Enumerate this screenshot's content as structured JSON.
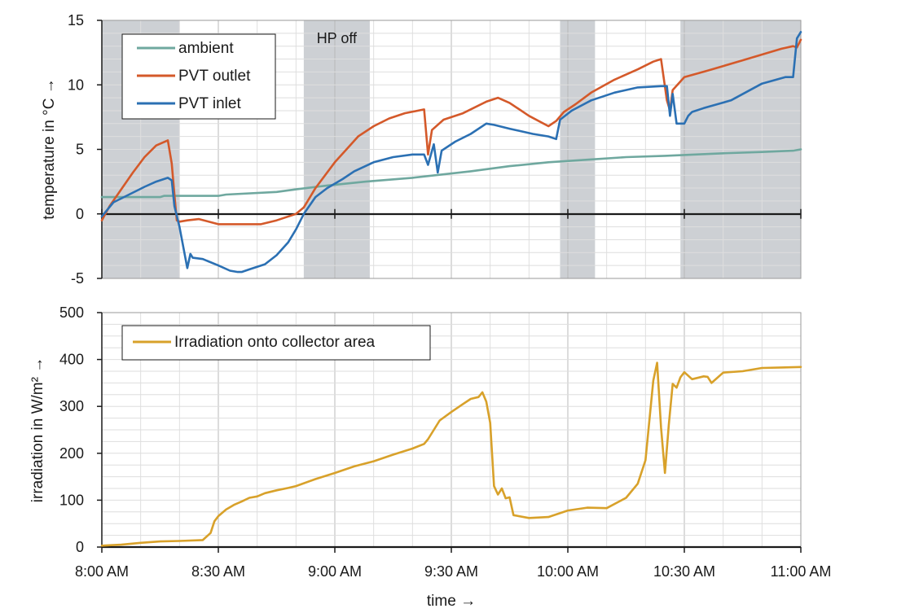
{
  "chart_data": [
    {
      "type": "line",
      "panel": "top",
      "xlabel": "",
      "ylabel": "temperature in °C →",
      "xlim": [
        0,
        180
      ],
      "ylim": [
        -5,
        15
      ],
      "yticks": [
        -5,
        0,
        5,
        10,
        15
      ],
      "grid": true,
      "legend_position": "top-left",
      "shaded_intervals": [
        [
          0,
          20
        ],
        [
          52,
          69
        ],
        [
          118,
          127
        ],
        [
          149,
          180
        ]
      ],
      "annotations": [
        {
          "text": "HP off",
          "x": 60.5,
          "y": 13.6
        }
      ],
      "series": [
        {
          "name": "ambient",
          "color": "#6fa89f",
          "x": [
            0,
            15,
            16,
            30,
            32,
            45,
            50,
            58,
            68,
            80,
            95,
            105,
            115,
            125,
            135,
            145,
            160,
            170,
            178,
            180
          ],
          "y": [
            1.3,
            1.3,
            1.4,
            1.4,
            1.5,
            1.7,
            1.9,
            2.2,
            2.5,
            2.8,
            3.3,
            3.7,
            4.0,
            4.2,
            4.4,
            4.5,
            4.7,
            4.8,
            4.9,
            5.0
          ]
        },
        {
          "name": "PVT outlet",
          "color": "#d4592a",
          "x": [
            0,
            2,
            5,
            8,
            11,
            14,
            17,
            18,
            18.7,
            19.3,
            20,
            22,
            25,
            30,
            35,
            41,
            45,
            50,
            52,
            55,
            60,
            63,
            66,
            70,
            74,
            78,
            83,
            84,
            85,
            88,
            93,
            99,
            102,
            105,
            110,
            115,
            117,
            119,
            122,
            126,
            132,
            138,
            142,
            144,
            145.5,
            146.3,
            147,
            150,
            156,
            165,
            175,
            178,
            179,
            180
          ],
          "y": [
            -0.5,
            0.6,
            1.9,
            3.2,
            4.4,
            5.3,
            5.7,
            3.9,
            1.5,
            -0.5,
            -0.6,
            -0.5,
            -0.4,
            -0.8,
            -0.8,
            -0.8,
            -0.5,
            0.0,
            0.5,
            2.0,
            4.0,
            5.0,
            6.0,
            6.8,
            7.4,
            7.8,
            8.1,
            4.6,
            6.5,
            7.3,
            7.8,
            8.7,
            9.0,
            8.6,
            7.6,
            6.8,
            7.2,
            7.9,
            8.5,
            9.4,
            10.4,
            11.2,
            11.8,
            12.0,
            8.8,
            8.0,
            9.6,
            10.6,
            11.1,
            11.9,
            12.8,
            13.0,
            12.9,
            13.5
          ]
        },
        {
          "name": "PVT inlet",
          "color": "#2b70b3",
          "x": [
            0,
            3,
            7,
            11,
            14,
            17,
            18,
            18.7,
            20,
            22,
            22.8,
            23.4,
            26,
            30,
            33,
            35,
            36,
            37,
            38,
            42,
            45,
            48,
            50,
            52,
            55,
            58,
            62,
            65,
            70,
            75,
            80,
            83,
            84,
            85.5,
            86.5,
            87.5,
            91,
            95,
            99,
            101,
            105,
            111,
            115,
            117,
            118,
            121,
            126,
            132,
            138,
            144,
            145.5,
            146.3,
            147,
            148,
            150,
            151,
            152,
            155,
            162,
            170,
            176,
            178,
            179,
            180
          ],
          "y": [
            -0.2,
            0.9,
            1.5,
            2.1,
            2.5,
            2.8,
            2.6,
            0.6,
            -1.0,
            -4.2,
            -3.1,
            -3.4,
            -3.5,
            -4.0,
            -4.4,
            -4.5,
            -4.5,
            -4.4,
            -4.3,
            -3.9,
            -3.2,
            -2.2,
            -1.2,
            0.0,
            1.3,
            2.0,
            2.7,
            3.3,
            4.0,
            4.4,
            4.6,
            4.6,
            3.8,
            5.4,
            3.2,
            4.9,
            5.6,
            6.2,
            7.0,
            6.9,
            6.6,
            6.2,
            6.0,
            5.8,
            7.3,
            8.0,
            8.8,
            9.4,
            9.8,
            9.9,
            9.9,
            7.6,
            9.3,
            7.0,
            7.0,
            7.6,
            7.9,
            8.2,
            8.8,
            10.1,
            10.6,
            10.6,
            13.6,
            14.1
          ]
        }
      ]
    },
    {
      "type": "line",
      "panel": "bottom",
      "xlabel": "time →",
      "ylabel": "irradiation in W/m² →",
      "xlim": [
        0,
        180
      ],
      "ylim": [
        0,
        500
      ],
      "yticks": [
        0,
        100,
        200,
        300,
        400,
        500
      ],
      "xticks": [
        "8:00 AM",
        "8:30 AM",
        "9:00 AM",
        "9:30 AM",
        "10:00 AM",
        "10:30 AM",
        "11:00 AM"
      ],
      "grid": true,
      "legend_position": "top-left",
      "series": [
        {
          "name": "Irradiation onto collector area",
          "color": "#d8a12a",
          "x": [
            0,
            5,
            10,
            15,
            20,
            26,
            28,
            29,
            30,
            32,
            34,
            36,
            38,
            40,
            42,
            45,
            48,
            50,
            55,
            60,
            65,
            70,
            75,
            80,
            83,
            84,
            87,
            90,
            93,
            95,
            97,
            98,
            99,
            100,
            101,
            102,
            103,
            104,
            105,
            106,
            110,
            115,
            120,
            125,
            130,
            135,
            138,
            140,
            142,
            143,
            144,
            145,
            146,
            147,
            148,
            149,
            150,
            152,
            155,
            156,
            157,
            160,
            165,
            170,
            175,
            180
          ],
          "y": [
            3,
            5,
            9,
            12,
            13,
            15,
            30,
            55,
            66,
            80,
            90,
            97,
            105,
            108,
            115,
            121,
            126,
            130,
            145,
            158,
            172,
            183,
            197,
            210,
            220,
            230,
            270,
            288,
            305,
            316,
            320,
            330,
            310,
            265,
            130,
            112,
            125,
            104,
            106,
            68,
            62,
            64,
            78,
            84,
            83,
            105,
            135,
            185,
            355,
            393,
            255,
            158,
            260,
            348,
            340,
            362,
            373,
            358,
            364,
            363,
            350,
            372,
            375,
            382,
            383,
            384
          ]
        }
      ]
    }
  ]
}
